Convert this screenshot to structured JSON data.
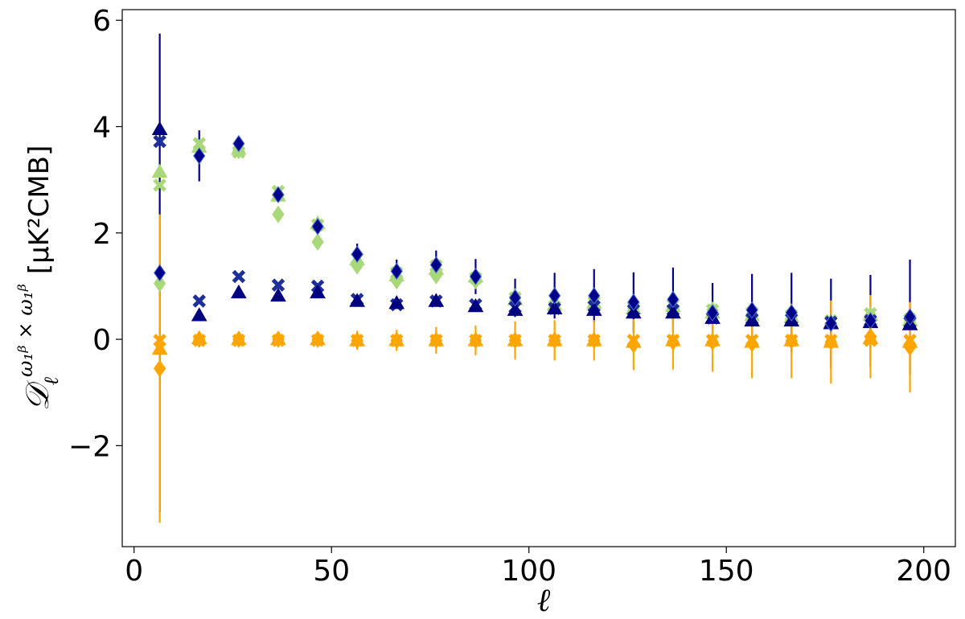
{
  "chart_data": {
    "type": "scatter",
    "title": "",
    "xlabel": "ℓ",
    "ylabel": {
      "main": "𝒟",
      "sub": "ℓ",
      "sup": "ω₁ᵝ × ω₁ᵝ",
      "unit": "[μK²CMB]"
    },
    "xlim": [
      -3,
      208
    ],
    "ylim": [
      -3.9,
      6.2
    ],
    "xticks": [
      0,
      50,
      100,
      150,
      200
    ],
    "yticks": [
      -2,
      0,
      2,
      4,
      6
    ],
    "ytick_labels": [
      "−2",
      "0",
      "2",
      "4",
      "6"
    ],
    "grid": false,
    "x": [
      6.5,
      16.5,
      26.5,
      36.5,
      46.5,
      56.5,
      66.5,
      76.5,
      86.5,
      96.5,
      106.5,
      116.5,
      126.5,
      136.5,
      146.5,
      156.5,
      166.5,
      176.5,
      186.5,
      196.5
    ],
    "series": [
      {
        "color": "#a8d878",
        "marker": "x",
        "values": [
          2.9,
          3.68,
          3.52,
          2.78,
          2.15,
          1.52,
          1.25,
          1.38,
          1.15,
          0.78,
          0.62,
          0.7,
          0.6,
          0.65,
          0.55,
          0.5,
          0.45,
          0.35,
          0.48,
          0.38
        ]
      },
      {
        "color": "#a8d878",
        "marker": "diamond",
        "values": [
          1.05,
          3.6,
          3.55,
          2.35,
          1.83,
          1.38,
          1.1,
          1.2,
          1.1,
          0.8,
          0.68,
          0.7,
          0.58,
          0.6,
          0.55,
          0.48,
          0.4,
          0.3,
          0.45,
          0.35
        ]
      },
      {
        "color": "#a8d878",
        "marker": "triangle",
        "values": [
          3.15,
          3.62,
          3.58,
          2.7,
          2.18,
          1.5,
          1.2,
          1.32,
          1.18,
          0.75,
          0.65,
          0.68,
          0.58,
          0.62,
          0.5,
          0.45,
          0.42,
          0.32,
          0.46,
          0.36
        ]
      },
      {
        "color": "#1e2f9a",
        "marker": "x",
        "values": [
          3.72,
          0.72,
          1.18,
          1.02,
          1.0,
          0.75,
          0.65,
          0.72,
          0.65,
          0.6,
          0.58,
          0.62,
          0.55,
          0.55,
          0.4,
          0.38,
          0.38,
          0.32,
          0.35,
          0.32
        ]
      },
      {
        "color": "#000080",
        "marker": "triangle",
        "values": [
          3.95,
          0.45,
          0.88,
          0.82,
          0.88,
          0.72,
          0.68,
          0.72,
          0.62,
          0.55,
          0.58,
          0.55,
          0.5,
          0.5,
          0.4,
          0.35,
          0.35,
          0.3,
          0.32,
          0.28
        ]
      },
      {
        "color": "#00008b",
        "marker": "diamond",
        "values": [
          1.25,
          3.45,
          3.68,
          2.72,
          2.12,
          1.6,
          1.28,
          1.4,
          1.18,
          0.78,
          0.82,
          0.82,
          0.7,
          0.75,
          0.5,
          0.55,
          0.5,
          0.3,
          0.35,
          0.42
        ],
        "err": [
          4.5,
          0.48,
          0.12,
          0.1,
          0.1,
          0.2,
          0.22,
          0.27,
          0.33,
          0.36,
          0.43,
          0.5,
          0.56,
          0.6,
          0.56,
          0.68,
          0.75,
          0.84,
          0.86,
          1.08
        ]
      },
      {
        "color": "#ffa500",
        "marker": "diamond",
        "values": [
          -0.55,
          0.0,
          0.0,
          0.0,
          0.0,
          -0.02,
          -0.02,
          -0.02,
          -0.02,
          -0.02,
          -0.02,
          -0.02,
          -0.1,
          -0.05,
          -0.05,
          -0.08,
          -0.03,
          -0.05,
          0.05,
          -0.15
        ],
        "err": [
          2.9,
          0.15,
          0.12,
          0.1,
          0.1,
          0.18,
          0.2,
          0.25,
          0.28,
          0.36,
          0.38,
          0.38,
          0.48,
          0.52,
          0.56,
          0.65,
          0.7,
          0.78,
          0.78,
          0.85
        ]
      },
      {
        "color": "#ffa500",
        "marker": "x",
        "values": [
          -0.02,
          -0.02,
          -0.02,
          -0.02,
          -0.02,
          -0.02,
          -0.02,
          -0.02,
          -0.02,
          -0.02,
          -0.02,
          -0.02,
          -0.02,
          -0.02,
          -0.02,
          -0.02,
          -0.02,
          -0.02,
          -0.02,
          -0.02
        ]
      },
      {
        "color": "#ffa500",
        "marker": "triangle",
        "values": [
          -0.18,
          0.02,
          0.0,
          0.0,
          0.0,
          -0.02,
          -0.02,
          -0.02,
          -0.02,
          -0.02,
          -0.02,
          -0.02,
          -0.05,
          -0.02,
          -0.02,
          -0.05,
          -0.02,
          -0.05,
          0.02,
          -0.05
        ]
      }
    ]
  }
}
